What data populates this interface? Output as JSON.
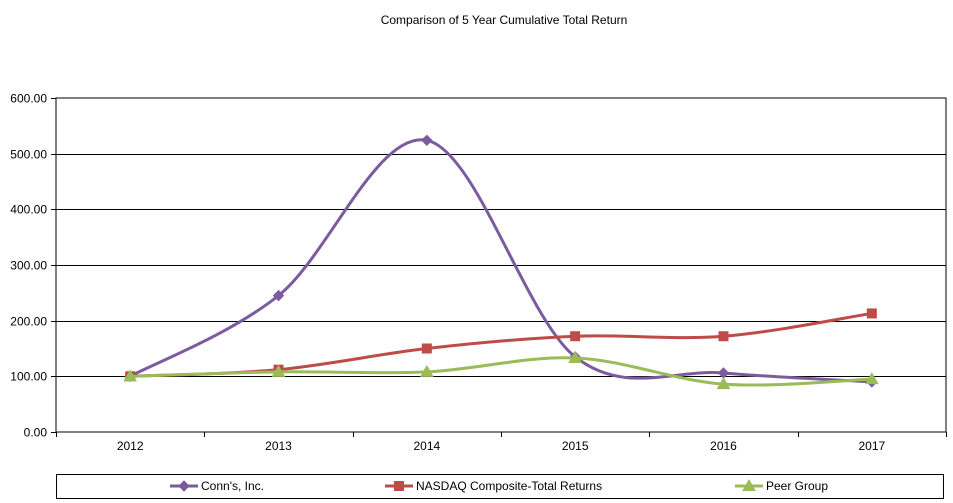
{
  "chart_data": {
    "type": "line",
    "title": "Comparison  of 5 Year Cumulative  Total Return",
    "xlabel": "",
    "ylabel": "",
    "categories": [
      "2012",
      "2013",
      "2014",
      "2015",
      "2016",
      "2017"
    ],
    "ylim": [
      0,
      600
    ],
    "yticks": [
      "0.00",
      "100.00",
      "200.00",
      "300.00",
      "400.00",
      "500.00",
      "600.00"
    ],
    "grid": true,
    "legend_position": "bottom",
    "series": [
      {
        "name": "Conn's, Inc.",
        "marker": "diamond",
        "color": "#7a5b9e",
        "values": [
          100,
          245,
          524,
          135,
          106,
          90
        ]
      },
      {
        "name": "NASDAQ Composite-Total Returns",
        "marker": "square",
        "color": "#be4b48",
        "values": [
          100,
          112,
          150,
          172,
          172,
          213
        ]
      },
      {
        "name": "Peer Group",
        "marker": "triangle",
        "color": "#9bbb59",
        "values": [
          100,
          108,
          108,
          133,
          86,
          95
        ]
      }
    ]
  }
}
